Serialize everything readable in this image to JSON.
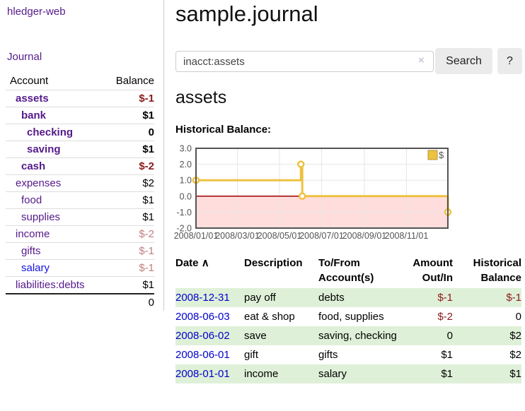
{
  "sidebar": {
    "brand": "hledger-web",
    "nav_journal": "Journal",
    "account_header": "Account",
    "balance_header": "Balance",
    "accounts": [
      {
        "name": "assets",
        "balance": "$-1",
        "level": 1,
        "bold": true,
        "balance_color": "negative"
      },
      {
        "name": "bank",
        "balance": "$1",
        "level": 2,
        "bold": true
      },
      {
        "name": "checking",
        "balance": "0",
        "level": 3,
        "bold": true
      },
      {
        "name": "saving",
        "balance": "$1",
        "level": 3,
        "bold": true
      },
      {
        "name": "cash",
        "balance": "$-2",
        "level": 2,
        "bold": true,
        "balance_color": "negative"
      },
      {
        "name": "expenses",
        "balance": "$2",
        "level": 1
      },
      {
        "name": "food",
        "balance": "$1",
        "level": 2
      },
      {
        "name": "supplies",
        "balance": "$1",
        "level": 2
      },
      {
        "name": "income",
        "balance": "$-2",
        "level": 1,
        "balance_color": "negative-light"
      },
      {
        "name": "gifts",
        "balance": "$-1",
        "level": 2,
        "balance_color": "negative-light"
      },
      {
        "name": "salary",
        "balance": "$-1",
        "level": 2,
        "balance_color": "negative-light",
        "name_color": "blue"
      },
      {
        "name": "liabilities:debts",
        "balance": "$1",
        "level": 1
      }
    ],
    "total": "0"
  },
  "header": {
    "title": "sample.journal"
  },
  "search": {
    "value": "inacct:assets",
    "clear_icon": "×",
    "button_label": "Search",
    "help_label": "?"
  },
  "account_page": {
    "title": "assets",
    "chart_label": "Historical Balance:"
  },
  "chart_data": {
    "type": "line",
    "step": true,
    "title": "Historical Balance of assets",
    "series": [
      {
        "name": "$",
        "x": [
          "2008-01-01",
          "2008-06-01",
          "2008-06-03",
          "2008-12-31"
        ],
        "y": [
          1,
          2,
          0,
          -1
        ]
      }
    ],
    "xlim": [
      "2008-01-01",
      "2008-12-31"
    ],
    "ylim": [
      -2,
      3
    ],
    "yticks": [
      3,
      2,
      1,
      0,
      -1,
      -2
    ],
    "ytick_labels": [
      "3.0",
      "2.0",
      "1.0",
      "0.0",
      "-1.0",
      "-2.0"
    ],
    "xticks": [
      "2008-01-01",
      "2008-03-01",
      "2008-05-01",
      "2008-07-01",
      "2008-09-01",
      "2008-11-01"
    ],
    "xtick_labels": [
      "2008/01/01",
      "2008/03/01",
      "2008/05/01",
      "2008/07/01",
      "2008/09/01",
      "2008/11/01"
    ],
    "legend": {
      "label": "$",
      "position": "top-right"
    },
    "grid": true,
    "series_color": "#edc240",
    "marker_fill": "#ffffff",
    "negative_region_color": "#ffdddd",
    "zero_line_color": "#990000",
    "grid_color": "#e6e6e6",
    "axis_text_color": "#545454",
    "border_color": "#545454"
  },
  "register": {
    "columns": {
      "date": "Date",
      "description": "Description",
      "accounts": "To/From Account(s)",
      "amount": "Amount Out/In",
      "balance": "Historical Balance"
    },
    "sort_icon": "∧",
    "rows": [
      {
        "date": "2008-12-31",
        "description": "pay off",
        "accounts": "debts",
        "amount": "$-1",
        "amount_neg": true,
        "balance": "$-1",
        "balance_neg": true,
        "striped": true
      },
      {
        "date": "2008-06-03",
        "description": "eat & shop",
        "accounts": "food, supplies",
        "amount": "$-2",
        "amount_neg": true,
        "balance": "0",
        "striped": false
      },
      {
        "date": "2008-06-02",
        "description": "save",
        "accounts": "saving, checking",
        "amount": "0",
        "balance": "$2",
        "striped": true
      },
      {
        "date": "2008-06-01",
        "description": "gift",
        "accounts": "gifts",
        "amount": "$1",
        "balance": "$2",
        "striped": false
      },
      {
        "date": "2008-01-01",
        "description": "income",
        "accounts": "salary",
        "amount": "$1",
        "balance": "$1",
        "striped": true
      }
    ]
  }
}
